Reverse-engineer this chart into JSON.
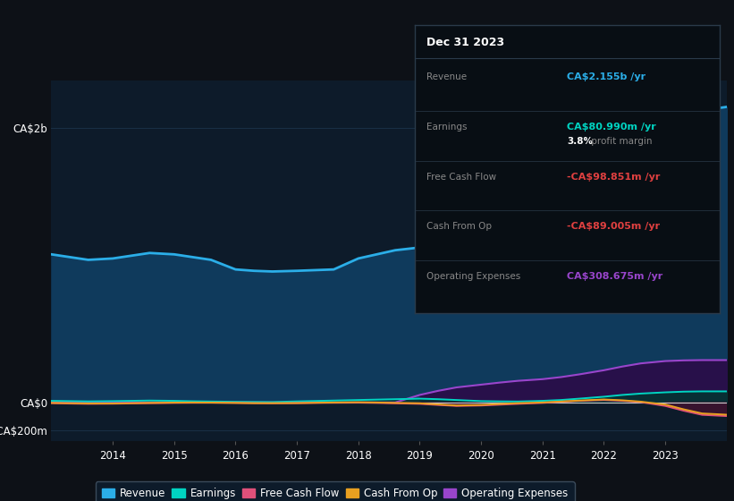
{
  "background_color": "#0d1117",
  "plot_bg_color": "#0d1b2a",
  "years": [
    2013.0,
    2013.3,
    2013.6,
    2014.0,
    2014.3,
    2014.6,
    2015.0,
    2015.3,
    2015.6,
    2016.0,
    2016.3,
    2016.6,
    2017.0,
    2017.3,
    2017.6,
    2018.0,
    2018.3,
    2018.6,
    2019.0,
    2019.3,
    2019.6,
    2020.0,
    2020.3,
    2020.6,
    2021.0,
    2021.3,
    2021.6,
    2022.0,
    2022.3,
    2022.6,
    2023.0,
    2023.3,
    2023.6,
    2024.0
  ],
  "revenue": [
    1080,
    1060,
    1040,
    1050,
    1070,
    1090,
    1080,
    1060,
    1040,
    970,
    960,
    955,
    960,
    965,
    970,
    1050,
    1080,
    1110,
    1130,
    1160,
    1190,
    1270,
    1280,
    1260,
    1240,
    1280,
    1350,
    1430,
    1560,
    1720,
    1930,
    2050,
    2130,
    2155
  ],
  "earnings": [
    12,
    10,
    8,
    10,
    12,
    14,
    12,
    9,
    7,
    5,
    4,
    3,
    8,
    11,
    14,
    18,
    21,
    24,
    28,
    24,
    18,
    10,
    8,
    7,
    12,
    18,
    28,
    42,
    55,
    65,
    74,
    79,
    81,
    81
  ],
  "free_cash_flow": [
    -5,
    -8,
    -10,
    -9,
    -7,
    -5,
    -3,
    -2,
    -2,
    -3,
    -5,
    -6,
    -5,
    -3,
    -2,
    -1,
    -3,
    -6,
    -10,
    -18,
    -25,
    -22,
    -16,
    -10,
    -3,
    5,
    12,
    18,
    12,
    3,
    -25,
    -60,
    -90,
    -99
  ],
  "cash_from_op": [
    -3,
    -5,
    -7,
    -7,
    -5,
    -3,
    -1,
    0,
    -1,
    -3,
    -5,
    -5,
    -4,
    -2,
    0,
    2,
    0,
    -3,
    -6,
    -14,
    -22,
    -18,
    -11,
    -5,
    0,
    7,
    14,
    22,
    16,
    6,
    -15,
    -50,
    -80,
    -89
  ],
  "operating_expenses": [
    0,
    0,
    0,
    0,
    0,
    0,
    0,
    0,
    0,
    0,
    0,
    0,
    0,
    0,
    0,
    0,
    0,
    0,
    55,
    85,
    110,
    130,
    145,
    158,
    170,
    185,
    205,
    235,
    262,
    285,
    302,
    307,
    309,
    309
  ],
  "revenue_color": "#2baee8",
  "revenue_fill": "#0f3a5c",
  "earnings_color": "#00d4c2",
  "earnings_fill": "#003830",
  "fcf_color": "#e0507a",
  "fcf_fill": "#4a1030",
  "cfo_color": "#e8a020",
  "opex_color": "#9945cc",
  "opex_fill": "#28104a",
  "ylim_top": 2350,
  "ylim_bottom": -280,
  "ytick_vals": [
    -200,
    0,
    2000
  ],
  "ytick_labels": [
    "-CA$200m",
    "CA$0",
    "CA$2b"
  ],
  "xtick_years": [
    2014,
    2015,
    2016,
    2017,
    2018,
    2019,
    2020,
    2021,
    2022,
    2023
  ],
  "grid_color": "#1a3045",
  "zero_line_color": "#cccccc",
  "info_box": {
    "title": "Dec 31 2023",
    "rows": [
      {
        "label": "Revenue",
        "value": "CA$2.155b",
        "unit": " /yr",
        "value_color": "#2baee8",
        "extra": null
      },
      {
        "label": "Earnings",
        "value": "CA$80.990m",
        "unit": " /yr",
        "value_color": "#00d4c2",
        "extra": "3.8% profit margin"
      },
      {
        "label": "Free Cash Flow",
        "value": "-CA$98.851m",
        "unit": " /yr",
        "value_color": "#e04040",
        "extra": null
      },
      {
        "label": "Cash From Op",
        "value": "-CA$89.005m",
        "unit": " /yr",
        "value_color": "#e04040",
        "extra": null
      },
      {
        "label": "Operating Expenses",
        "value": "CA$308.675m",
        "unit": " /yr",
        "value_color": "#9945cc",
        "extra": null
      }
    ],
    "bg_color": "#080e14",
    "border_color": "#2a3a4a",
    "text_color": "#888888",
    "title_color": "#ffffff"
  },
  "legend_items": [
    {
      "label": "Revenue",
      "color": "#2baee8"
    },
    {
      "label": "Earnings",
      "color": "#00d4c2"
    },
    {
      "label": "Free Cash Flow",
      "color": "#e0507a"
    },
    {
      "label": "Cash From Op",
      "color": "#e8a020"
    },
    {
      "label": "Operating Expenses",
      "color": "#9945cc"
    }
  ]
}
